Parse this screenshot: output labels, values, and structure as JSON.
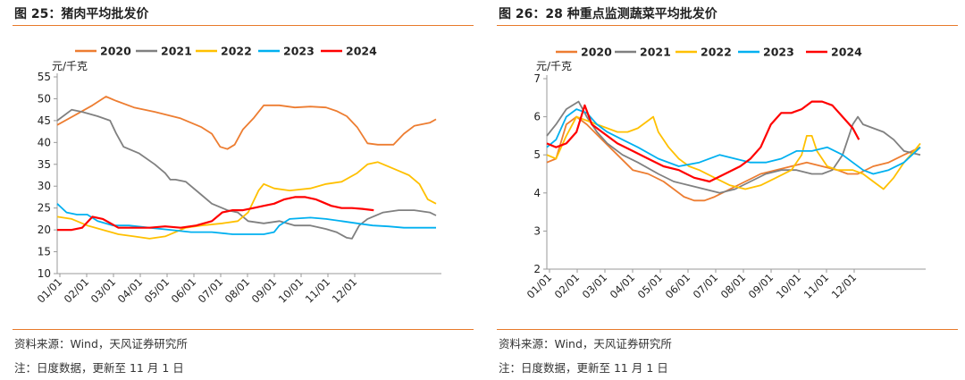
{
  "panels": [
    {
      "title": "图 25：猪肉平均批发价",
      "source": "资料来源：Wind，天风证券研究所",
      "note": "注：日度数据，更新至 11 月 1 日"
    },
    {
      "title": "图 26：28 种重点监测蔬菜平均批发价",
      "source": "资料来源：Wind，天风证券研究所",
      "note": "注：日度数据，更新至 11 月 1 日"
    }
  ],
  "chart_data": [
    {
      "type": "line",
      "unit_label": "元/千克",
      "ylim": [
        10,
        55
      ],
      "yticks": [
        10,
        15,
        20,
        25,
        30,
        35,
        40,
        45,
        50,
        55
      ],
      "x_range": [
        1,
        366
      ],
      "x_ticks": [
        "01/01",
        "02/01",
        "03/01",
        "04/01",
        "05/01",
        "06/01",
        "07/01",
        "08/01",
        "09/01",
        "10/01",
        "11/01",
        "12/01"
      ],
      "grid": false,
      "legend": "top",
      "series": [
        {
          "name": "2020",
          "color": "#ed7d31",
          "x": [
            1,
            20,
            35,
            48,
            58,
            75,
            95,
            120,
            140,
            150,
            158,
            165,
            172,
            180,
            190,
            200,
            215,
            230,
            245,
            260,
            270,
            280,
            290,
            300,
            310,
            318,
            325,
            335,
            345,
            360,
            366
          ],
          "y": [
            44,
            46.5,
            48.5,
            50.5,
            49.5,
            48,
            47,
            45.5,
            43.5,
            42,
            39,
            38.5,
            39.5,
            43,
            45.5,
            48.5,
            48.5,
            48,
            48.2,
            48,
            47.2,
            46,
            43.5,
            39.8,
            39.5,
            39.5,
            39.5,
            42,
            43.8,
            44.5,
            45.3
          ]
        },
        {
          "name": "2021",
          "color": "#808080",
          "x": [
            1,
            15,
            25,
            40,
            52,
            58,
            65,
            80,
            95,
            105,
            110,
            115,
            125,
            140,
            150,
            165,
            175,
            185,
            200,
            215,
            230,
            245,
            260,
            270,
            280,
            285,
            292,
            300,
            315,
            330,
            345,
            360,
            366
          ],
          "y": [
            45,
            47.5,
            47,
            46,
            45,
            42,
            39,
            37.5,
            35,
            33,
            31.5,
            31.5,
            31,
            28,
            26,
            24.5,
            24,
            22,
            21.5,
            22,
            21,
            21,
            20.2,
            19.5,
            18.2,
            18,
            21,
            22.5,
            24,
            24.5,
            24.5,
            24,
            23.3
          ]
        },
        {
          "name": "2022",
          "color": "#ffc000",
          "x": [
            1,
            15,
            30,
            45,
            60,
            75,
            90,
            105,
            115,
            125,
            140,
            160,
            175,
            185,
            195,
            200,
            210,
            225,
            245,
            260,
            275,
            290,
            300,
            310,
            320,
            330,
            340,
            350,
            358,
            366
          ],
          "y": [
            23,
            22.5,
            21,
            20,
            19,
            18.5,
            18,
            18.5,
            19.5,
            20.5,
            21,
            21.5,
            22,
            24,
            29,
            30.5,
            29.5,
            29,
            29.5,
            30.5,
            31,
            33,
            35,
            35.5,
            34.5,
            33.5,
            32.5,
            30.5,
            27,
            26
          ]
        },
        {
          "name": "2023",
          "color": "#00b0f0",
          "x": [
            1,
            10,
            20,
            30,
            40,
            55,
            70,
            90,
            110,
            130,
            150,
            170,
            185,
            200,
            210,
            215,
            225,
            245,
            260,
            275,
            290,
            305,
            320,
            335,
            350,
            366
          ],
          "y": [
            26,
            24,
            23.5,
            23.5,
            22,
            21,
            21,
            20.5,
            20,
            19.5,
            19.5,
            19,
            19,
            19,
            19.5,
            21,
            22.5,
            22.8,
            22.5,
            22,
            21.5,
            21,
            20.8,
            20.5,
            20.5,
            20.5
          ]
        },
        {
          "name": "2024",
          "color": "#ff0000",
          "x": [
            1,
            15,
            25,
            35,
            45,
            60,
            75,
            90,
            105,
            120,
            135,
            150,
            160,
            170,
            180,
            190,
            200,
            210,
            220,
            230,
            240,
            250,
            255,
            265,
            275,
            285,
            295,
            306
          ],
          "y": [
            20,
            20,
            20.5,
            23,
            22.5,
            20.5,
            20.5,
            20.5,
            20.8,
            20.5,
            21,
            22,
            24,
            24.5,
            24.5,
            25,
            25.5,
            26,
            27,
            27.5,
            27.5,
            27,
            26.5,
            25.5,
            25,
            25,
            24.8,
            24.5
          ]
        }
      ]
    },
    {
      "type": "line",
      "unit_label": "元/千克",
      "ylim": [
        2,
        7
      ],
      "yticks": [
        2,
        3,
        4,
        5,
        6,
        7
      ],
      "x_range": [
        1,
        366
      ],
      "x_ticks": [
        "01/01",
        "02/01",
        "03/01",
        "04/01",
        "05/01",
        "06/01",
        "07/01",
        "08/01",
        "09/01",
        "10/01",
        "11/01",
        "12/01"
      ],
      "grid": false,
      "legend": "top",
      "series": [
        {
          "name": "2020",
          "color": "#ed7d31",
          "x": [
            1,
            10,
            20,
            30,
            40,
            55,
            70,
            85,
            100,
            115,
            125,
            135,
            145,
            155,
            165,
            180,
            195,
            210,
            225,
            240,
            255,
            270,
            285,
            295,
            305,
            320,
            335,
            350,
            366
          ],
          "y": [
            4.8,
            4.9,
            5.8,
            6,
            5.8,
            5.4,
            5,
            4.6,
            4.5,
            4.3,
            4.1,
            3.9,
            3.8,
            3.8,
            3.9,
            4.1,
            4.3,
            4.5,
            4.6,
            4.7,
            4.8,
            4.7,
            4.6,
            4.5,
            4.5,
            4.7,
            4.8,
            5,
            5.2
          ]
        },
        {
          "name": "2021",
          "color": "#808080",
          "x": [
            1,
            10,
            20,
            32,
            40,
            50,
            60,
            75,
            90,
            110,
            125,
            140,
            155,
            170,
            185,
            200,
            215,
            230,
            245,
            260,
            270,
            280,
            290,
            300,
            305,
            310,
            320,
            330,
            340,
            350,
            366
          ],
          "y": [
            5.5,
            5.8,
            6.2,
            6.4,
            6,
            5.6,
            5.3,
            5,
            4.8,
            4.5,
            4.3,
            4.2,
            4.1,
            4,
            4.1,
            4.3,
            4.5,
            4.6,
            4.6,
            4.5,
            4.5,
            4.6,
            5,
            5.8,
            6,
            5.8,
            5.7,
            5.6,
            5.4,
            5.1,
            5
          ]
        },
        {
          "name": "2022",
          "color": "#ffc000",
          "x": [
            1,
            10,
            20,
            30,
            40,
            50,
            60,
            70,
            80,
            90,
            100,
            105,
            110,
            120,
            130,
            140,
            150,
            165,
            180,
            195,
            210,
            225,
            240,
            250,
            255,
            260,
            265,
            275,
            285,
            300,
            310,
            320,
            330,
            340,
            350,
            360,
            366
          ],
          "y": [
            5,
            4.9,
            5.5,
            6,
            5.9,
            5.8,
            5.7,
            5.6,
            5.6,
            5.7,
            5.9,
            6,
            5.6,
            5.2,
            4.9,
            4.7,
            4.6,
            4.4,
            4.2,
            4.1,
            4.2,
            4.4,
            4.6,
            5,
            5.5,
            5.5,
            5.1,
            4.7,
            4.6,
            4.6,
            4.5,
            4.3,
            4.1,
            4.4,
            4.8,
            5.1,
            5.3
          ]
        },
        {
          "name": "2023",
          "color": "#00b0f0",
          "x": [
            1,
            10,
            20,
            30,
            40,
            50,
            60,
            75,
            90,
            110,
            130,
            150,
            170,
            185,
            200,
            215,
            230,
            245,
            260,
            275,
            290,
            300,
            310,
            320,
            335,
            350,
            366
          ],
          "y": [
            5.2,
            5.4,
            6,
            6.2,
            6.1,
            5.8,
            5.6,
            5.4,
            5.2,
            4.9,
            4.7,
            4.8,
            5,
            4.9,
            4.8,
            4.8,
            4.9,
            5.1,
            5.1,
            5.2,
            5,
            4.8,
            4.6,
            4.5,
            4.6,
            4.8,
            5.2
          ]
        },
        {
          "name": "2024",
          "color": "#ff0000",
          "x": [
            1,
            10,
            20,
            30,
            38,
            45,
            55,
            70,
            85,
            100,
            115,
            130,
            145,
            160,
            175,
            190,
            200,
            210,
            220,
            230,
            240,
            250,
            260,
            270,
            280,
            290,
            300,
            306
          ],
          "y": [
            5.3,
            5.2,
            5.3,
            5.6,
            6.3,
            5.8,
            5.6,
            5.3,
            5.1,
            4.9,
            4.7,
            4.6,
            4.4,
            4.3,
            4.5,
            4.7,
            4.9,
            5.2,
            5.8,
            6.1,
            6.1,
            6.2,
            6.4,
            6.4,
            6.3,
            6,
            5.7,
            5.4
          ]
        }
      ]
    }
  ]
}
